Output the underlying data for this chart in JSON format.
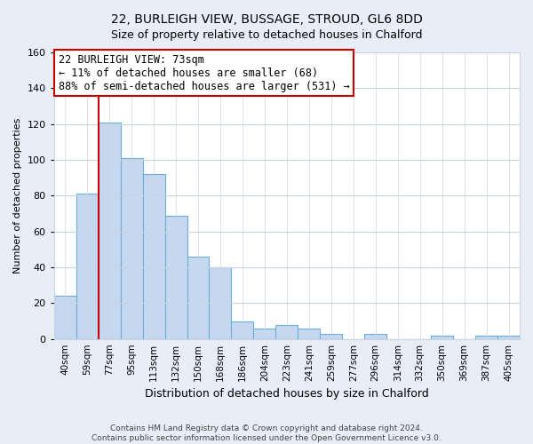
{
  "title": "22, BURLEIGH VIEW, BUSSAGE, STROUD, GL6 8DD",
  "subtitle": "Size of property relative to detached houses in Chalford",
  "xlabel": "Distribution of detached houses by size in Chalford",
  "ylabel": "Number of detached properties",
  "bar_labels": [
    "40sqm",
    "59sqm",
    "77sqm",
    "95sqm",
    "113sqm",
    "132sqm",
    "150sqm",
    "168sqm",
    "186sqm",
    "204sqm",
    "223sqm",
    "241sqm",
    "259sqm",
    "277sqm",
    "296sqm",
    "314sqm",
    "332sqm",
    "350sqm",
    "369sqm",
    "387sqm",
    "405sqm"
  ],
  "bar_heights": [
    24,
    81,
    121,
    101,
    92,
    69,
    46,
    40,
    10,
    6,
    8,
    6,
    3,
    0,
    3,
    0,
    0,
    2,
    0,
    2,
    2
  ],
  "bar_color": "#c5d8ef",
  "bar_edge_color": "#6baed6",
  "property_line_color": "#cc0000",
  "ylim": [
    0,
    160
  ],
  "yticks": [
    0,
    20,
    40,
    60,
    80,
    100,
    120,
    140,
    160
  ],
  "annotation_text": "22 BURLEIGH VIEW: 73sqm\n← 11% of detached houses are smaller (68)\n88% of semi-detached houses are larger (531) →",
  "annotation_box_edge": "#cc0000",
  "footer_line1": "Contains HM Land Registry data © Crown copyright and database right 2024.",
  "footer_line2": "Contains public sector information licensed under the Open Government Licence v3.0.",
  "bg_color": "#e8eef7",
  "plot_bg_color": "#ffffff",
  "grid_color": "#c8d4e4",
  "title_fontsize": 10,
  "subtitle_fontsize": 9
}
